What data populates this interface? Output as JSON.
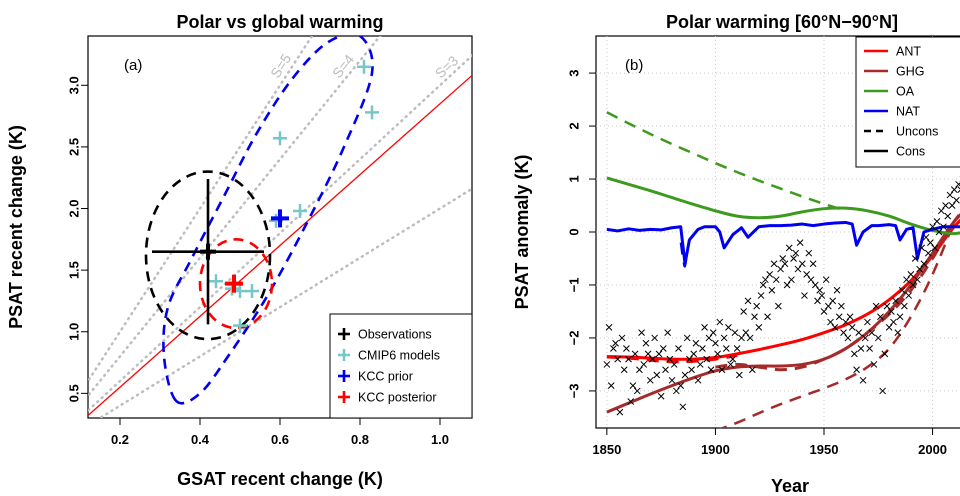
{
  "chart_data": [
    {
      "type": "scatter",
      "panel_label": "(a)",
      "title": "Polar vs global warming",
      "xlabel": "GSAT recent change (K)",
      "ylabel": "PSAT recent change (K)",
      "xlim": [
        0.12,
        1.08
      ],
      "ylim": [
        0.3,
        3.4
      ],
      "xticks": [
        0.2,
        0.4,
        0.6,
        0.8,
        1.0
      ],
      "xtick_labels": [
        "0.2",
        "0.4",
        "0.6",
        "0.8",
        "1.0"
      ],
      "yticks": [
        0.5,
        1.0,
        1.5,
        2.0,
        2.5,
        3.0
      ],
      "ytick_labels": [
        "0.5",
        "1.0",
        "1.5",
        "2.0",
        "2.5",
        "3.0"
      ],
      "grid": false,
      "slope_lines": [
        {
          "label": "S=5",
          "slope": 5
        },
        {
          "label": "S=4",
          "slope": 4
        },
        {
          "label": "S=3",
          "slope": 3
        },
        {
          "slope": 2
        }
      ],
      "regression_line": {
        "color": "#ff0000",
        "points": [
          [
            0.12,
            0.32
          ],
          [
            1.08,
            3.08
          ]
        ]
      },
      "observations": {
        "x": 0.42,
        "y": 1.65,
        "x_range": [
          0.28,
          0.56
        ],
        "y_range": [
          1.06,
          2.24
        ]
      },
      "observation_ellipse": {
        "cx": 0.42,
        "cy": 1.62,
        "rx": 0.155,
        "ry": 0.68
      },
      "cmip6_models": [
        {
          "x": 0.44,
          "y": 1.41
        },
        {
          "x": 0.48,
          "y": 1.35
        },
        {
          "x": 0.5,
          "y": 1.05
        },
        {
          "x": 0.5,
          "y": 1.33
        },
        {
          "x": 0.53,
          "y": 1.33
        },
        {
          "x": 0.59,
          "y": 1.9
        },
        {
          "x": 0.6,
          "y": 2.57
        },
        {
          "x": 0.65,
          "y": 1.98
        },
        {
          "x": 0.81,
          "y": 3.15
        },
        {
          "x": 0.83,
          "y": 2.78
        }
      ],
      "kcc_prior": {
        "x": 0.6,
        "y": 1.92
      },
      "kcc_prior_ellipse": [
        [
          0.34,
          0.44
        ],
        [
          0.31,
          0.8
        ],
        [
          0.32,
          1.2
        ],
        [
          0.38,
          1.6
        ],
        [
          0.46,
          2.1
        ],
        [
          0.54,
          2.6
        ],
        [
          0.63,
          3.05
        ],
        [
          0.72,
          3.35
        ],
        [
          0.8,
          3.4
        ],
        [
          0.83,
          3.1
        ],
        [
          0.76,
          2.5
        ],
        [
          0.67,
          1.9
        ],
        [
          0.57,
          1.3
        ],
        [
          0.47,
          0.8
        ],
        [
          0.4,
          0.5
        ]
      ],
      "kcc_posterior": {
        "x": 0.485,
        "y": 1.39
      },
      "kcc_posterior_ellipse": {
        "cx": 0.49,
        "cy": 1.39,
        "rx": 0.09,
        "ry": 0.36
      },
      "legend": {
        "position": "bottom-right",
        "items": [
          {
            "label": "Observations",
            "color": "#000000"
          },
          {
            "label": "CMIP6 models",
            "color": "#76c7c9"
          },
          {
            "label": "KCC prior",
            "color": "#0000ee"
          },
          {
            "label": "KCC posterior",
            "color": "#ff0000"
          }
        ]
      }
    },
    {
      "type": "line",
      "panel_label": "(b)",
      "title": "Polar warming [60°N−90°N]",
      "xlabel": "Year",
      "ylabel": "PSAT anomaly (K)",
      "xlim": [
        1845,
        2020
      ],
      "ylim": [
        -3.7,
        3.7
      ],
      "xticks": [
        1850,
        1900,
        1950,
        2000
      ],
      "xtick_labels": [
        "1850",
        "1900",
        "1950",
        "2000"
      ],
      "yticks": [
        -3,
        -2,
        -1,
        0,
        1,
        2,
        3
      ],
      "ytick_labels": [
        "−3",
        "−2",
        "−1",
        "0",
        "1",
        "2",
        "3"
      ],
      "grid": true,
      "legend": {
        "position": "top-right",
        "items": [
          {
            "label": "ANT",
            "color": "#ff0000",
            "style": "solid"
          },
          {
            "label": "GHG",
            "color": "#a52a2a",
            "style": "solid"
          },
          {
            "label": "OA",
            "color": "#3c9a1e",
            "style": "solid"
          },
          {
            "label": "NAT",
            "color": "#0000ee",
            "style": "solid"
          },
          {
            "label": "Uncons",
            "color": "#000000",
            "style": "dashed"
          },
          {
            "label": "Cons",
            "color": "#000000",
            "style": "solid"
          }
        ]
      },
      "series": [
        {
          "name": "ANT",
          "style": "solid",
          "color": "#ff0000",
          "width": 3,
          "x": [
            1850,
            1860,
            1870,
            1880,
            1890,
            1900,
            1910,
            1920,
            1930,
            1940,
            1950,
            1960,
            1970,
            1980,
            1990,
            2000,
            2010,
            2020
          ],
          "y": [
            -2.35,
            -2.36,
            -2.38,
            -2.4,
            -2.4,
            -2.37,
            -2.3,
            -2.22,
            -2.13,
            -2.03,
            -1.9,
            -1.75,
            -1.55,
            -1.28,
            -0.92,
            -0.45,
            0.1,
            0.5
          ]
        },
        {
          "name": "ANT",
          "style": "dashed",
          "color": "#ff0000",
          "width": 3,
          "x": [
            1850,
            1860,
            1870,
            1880,
            1890,
            1900,
            1910
          ],
          "y": [
            -2.36,
            -2.38,
            -2.42,
            -2.45,
            -2.44,
            -2.4,
            -2.33
          ]
        },
        {
          "name": "GHG",
          "style": "solid",
          "color": "#a52a2a",
          "width": 3,
          "x": [
            1850,
            1860,
            1870,
            1880,
            1890,
            1900,
            1910,
            1920,
            1930,
            1940,
            1950,
            1960,
            1970,
            1980,
            1990,
            2000,
            2010,
            2020
          ],
          "y": [
            -3.4,
            -3.23,
            -3.06,
            -2.9,
            -2.75,
            -2.62,
            -2.55,
            -2.53,
            -2.53,
            -2.5,
            -2.4,
            -2.2,
            -1.9,
            -1.5,
            -1.0,
            -0.4,
            0.2,
            0.6
          ]
        },
        {
          "name": "GHG",
          "style": "dashed",
          "color": "#a52a2a",
          "width": 3,
          "x": [
            1900,
            1910,
            1920,
            1930,
            1940,
            1950,
            1960,
            1970,
            1980,
            1990,
            2000,
            2010,
            2020
          ],
          "y": [
            -2.55,
            -2.5,
            -2.55,
            -2.6,
            -2.55,
            -2.4,
            -2.2,
            -1.9,
            -1.55,
            -1.1,
            -0.5,
            0.2,
            0.7
          ]
        },
        {
          "name": "GHG",
          "style": "dashed",
          "color": "#a52a2a",
          "width": 2.5,
          "x": [
            1900,
            1910,
            1920,
            1930,
            1940,
            1950,
            1960,
            1970,
            1980,
            1990,
            2000,
            2010
          ],
          "y": [
            -3.75,
            -3.6,
            -3.42,
            -3.25,
            -3.1,
            -2.95,
            -2.78,
            -2.55,
            -2.2,
            -1.6,
            -0.8,
            0.2
          ]
        },
        {
          "name": "OA",
          "style": "solid",
          "color": "#3c9a1e",
          "width": 3,
          "x": [
            1850,
            1860,
            1870,
            1880,
            1890,
            1900,
            1910,
            1920,
            1930,
            1940,
            1950,
            1960,
            1970,
            1980,
            1990,
            2000,
            2010,
            2020
          ],
          "y": [
            1.02,
            0.9,
            0.78,
            0.65,
            0.52,
            0.4,
            0.3,
            0.27,
            0.3,
            0.38,
            0.44,
            0.45,
            0.4,
            0.3,
            0.15,
            0.03,
            -0.03,
            0.05
          ]
        },
        {
          "name": "OA",
          "style": "dashed",
          "color": "#3c9a1e",
          "width": 2.5,
          "x": [
            1850,
            1860,
            1870,
            1880,
            1890,
            1900,
            1910,
            1920,
            1930,
            1940,
            1950,
            1960
          ],
          "y": [
            2.26,
            2.05,
            1.85,
            1.66,
            1.48,
            1.3,
            1.13,
            0.97,
            0.82,
            0.67,
            0.53,
            0.4
          ]
        },
        {
          "name": "NAT",
          "style": "solid",
          "color": "#0000ee",
          "width": 3,
          "x": [
            1850,
            1855,
            1860,
            1865,
            1870,
            1875,
            1880,
            1884,
            1886,
            1888,
            1892,
            1895,
            1900,
            1902,
            1904,
            1908,
            1912,
            1915,
            1920,
            1925,
            1930,
            1935,
            1940,
            1945,
            1950,
            1955,
            1960,
            1963,
            1965,
            1968,
            1972,
            1975,
            1980,
            1983,
            1985,
            1988,
            1991,
            1993,
            1996,
            2000,
            2005,
            2010,
            2015,
            2020
          ],
          "y": [
            0.05,
            0.02,
            0.06,
            0.03,
            0.05,
            0.04,
            0.08,
            0.1,
            -0.6,
            -0.15,
            0.05,
            0.1,
            0.1,
            0.0,
            -0.3,
            -0.05,
            0.08,
            -0.1,
            0.1,
            0.12,
            0.12,
            0.13,
            0.15,
            0.12,
            0.15,
            0.17,
            0.18,
            0.15,
            -0.25,
            0.0,
            0.12,
            0.12,
            0.14,
            0.12,
            -0.15,
            0.05,
            0.08,
            -0.5,
            0.0,
            0.05,
            0.1,
            0.1,
            0.1,
            0.1
          ]
        },
        {
          "name": "Cons",
          "style": "dashed",
          "color": "#0000ee",
          "width": 2,
          "x": [
            1884,
            1885,
            1886,
            1887
          ],
          "y": [
            -0.2,
            -0.5,
            -0.65,
            -0.35
          ]
        },
        {
          "name": "Observations",
          "style": "markers",
          "color": "#000000",
          "x": [
            1850,
            1851,
            1852,
            1853,
            1854,
            1855,
            1856,
            1857,
            1858,
            1859,
            1860,
            1861,
            1862,
            1863,
            1864,
            1865,
            1866,
            1867,
            1868,
            1869,
            1870,
            1871,
            1872,
            1873,
            1874,
            1875,
            1876,
            1877,
            1878,
            1879,
            1880,
            1881,
            1882,
            1883,
            1884,
            1885,
            1886,
            1887,
            1888,
            1889,
            1890,
            1891,
            1892,
            1893,
            1894,
            1895,
            1896,
            1897,
            1898,
            1899,
            1900,
            1901,
            1902,
            1903,
            1904,
            1905,
            1906,
            1907,
            1908,
            1909,
            1910,
            1911,
            1912,
            1913,
            1914,
            1915,
            1916,
            1917,
            1918,
            1919,
            1920,
            1921,
            1922,
            1923,
            1924,
            1925,
            1926,
            1927,
            1928,
            1929,
            1930,
            1931,
            1932,
            1933,
            1934,
            1935,
            1936,
            1937,
            1938,
            1939,
            1940,
            1941,
            1942,
            1943,
            1944,
            1945,
            1946,
            1947,
            1948,
            1949,
            1950,
            1951,
            1952,
            1953,
            1954,
            1955,
            1956,
            1957,
            1958,
            1959,
            1960,
            1961,
            1962,
            1963,
            1964,
            1965,
            1966,
            1967,
            1968,
            1969,
            1970,
            1971,
            1972,
            1973,
            1974,
            1975,
            1976,
            1977,
            1978,
            1979,
            1980,
            1981,
            1982,
            1983,
            1984,
            1985,
            1986,
            1987,
            1988,
            1989,
            1990,
            1991,
            1992,
            1993,
            1994,
            1995,
            1996,
            1997,
            1998,
            1999,
            2000,
            2001,
            2002,
            2003,
            2004,
            2005,
            2006,
            2007,
            2008,
            2009,
            2010,
            2011,
            2012,
            2013,
            2014,
            2015,
            2016,
            2017,
            2018
          ],
          "y": [
            -2.5,
            -1.8,
            -2.9,
            -2.2,
            -2.1,
            -2.4,
            -3.4,
            -2.0,
            -2.6,
            -2.2,
            -2.4,
            -3.2,
            -2.9,
            -2.3,
            -3.0,
            -2.6,
            -1.9,
            -2.5,
            -2.1,
            -2.3,
            -2.8,
            -2.4,
            -2.0,
            -2.7,
            -2.3,
            -3.1,
            -2.2,
            -2.6,
            -1.9,
            -2.4,
            -2.8,
            -2.5,
            -3.0,
            -2.2,
            -2.9,
            -3.3,
            -2.7,
            -2.0,
            -2.4,
            -2.6,
            -2.3,
            -2.1,
            -2.8,
            -2.5,
            -2.2,
            -1.8,
            -2.4,
            -2.0,
            -2.6,
            -1.9,
            -2.1,
            -2.3,
            -1.7,
            -2.6,
            -2.0,
            -2.2,
            -1.8,
            -2.5,
            -2.4,
            -1.9,
            -2.2,
            -2.7,
            -2.0,
            -1.5,
            -1.9,
            -1.3,
            -2.0,
            -2.6,
            -1.6,
            -1.4,
            -1.8,
            -1.2,
            -1.0,
            -0.9,
            -1.6,
            -0.8,
            -1.1,
            -0.6,
            -0.9,
            -1.4,
            -0.7,
            -0.5,
            -0.6,
            -1.0,
            -0.3,
            -0.9,
            -0.5,
            -0.4,
            -0.7,
            -0.2,
            -0.6,
            -1.2,
            -0.8,
            -0.4,
            -0.9,
            -0.6,
            -1.0,
            -1.3,
            -1.1,
            -1.2,
            -1.5,
            -0.9,
            -1.4,
            -1.7,
            -1.3,
            -1.8,
            -1.1,
            -1.6,
            -1.4,
            -1.9,
            -1.7,
            -2.0,
            -1.6,
            -1.8,
            -2.3,
            -2.6,
            -1.9,
            -2.2,
            -2.8,
            -2.0,
            -1.7,
            -2.2,
            -1.9,
            -2.5,
            -1.4,
            -2.0,
            -1.6,
            -3.0,
            -2.3,
            -1.4,
            -1.8,
            -1.5,
            -1.7,
            -1.3,
            -1.9,
            -1.6,
            -1.1,
            -1.4,
            -0.9,
            -1.2,
            -0.8,
            -1.0,
            -0.5,
            -0.9,
            -0.7,
            -0.3,
            -0.6,
            -0.1,
            -0.4,
            -0.2,
            0.1,
            -0.3,
            0.2,
            0.0,
            0.4,
            0.1,
            0.5,
            0.3,
            0.7,
            0.5,
            0.8,
            0.6,
            0.9,
            0.8,
            1.0,
            1.1,
            0.9,
            1.2,
            0.8
          ]
        }
      ]
    }
  ]
}
